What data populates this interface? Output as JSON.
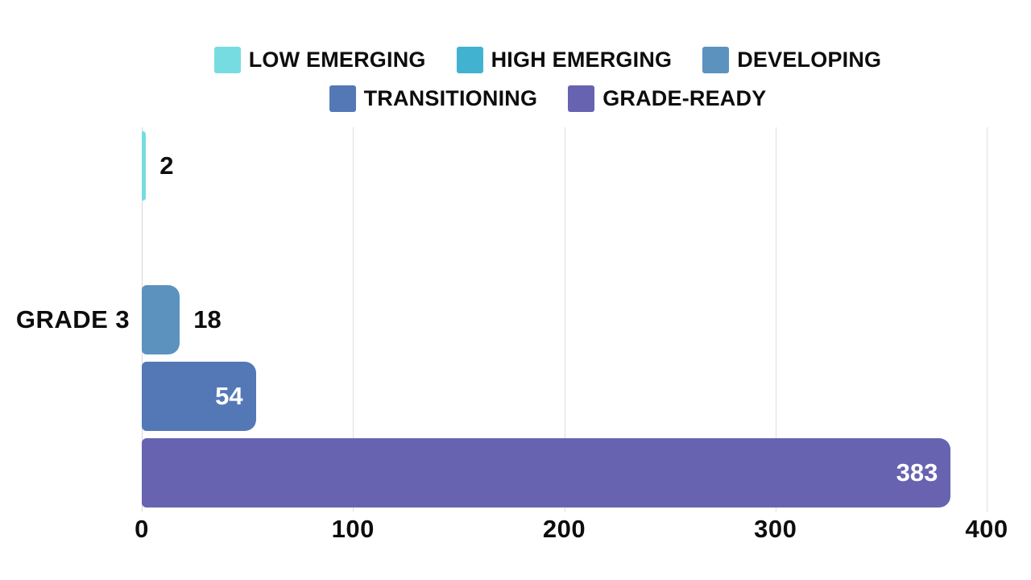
{
  "page": {
    "background": "#ffffff",
    "text_color": "#0d0d0d",
    "gridline_color": "#dedede"
  },
  "chart_data": {
    "type": "bar",
    "orientation": "horizontal",
    "title": "",
    "category_label": "GRADE 3",
    "series": [
      {
        "name": "LOW EMERGING",
        "value": 2,
        "label": "2",
        "color": "#76dce2"
      },
      {
        "name": "HIGH EMERGING",
        "value": 0,
        "label": "",
        "color": "#41b2cf"
      },
      {
        "name": "DEVELOPING",
        "value": 18,
        "label": "18",
        "color": "#5b92be"
      },
      {
        "name": "TRANSITIONING",
        "value": 54,
        "label": "54",
        "color": "#5478b6"
      },
      {
        "name": "GRADE-READY",
        "value": 383,
        "label": "383",
        "color": "#6763b1"
      }
    ],
    "xlim": [
      0,
      400
    ],
    "xticks": [
      "0",
      "100",
      "200",
      "300",
      "400"
    ],
    "grid": "vertical",
    "legend_position": "top-center",
    "legend_entries": [
      "LOW EMERGING",
      "HIGH EMERGING",
      "DEVELOPING",
      "TRANSITIONING",
      "GRADE-READY"
    ],
    "value_label_inside_color": "#ffffff",
    "value_label_outside_color": "#0d0d0d"
  }
}
